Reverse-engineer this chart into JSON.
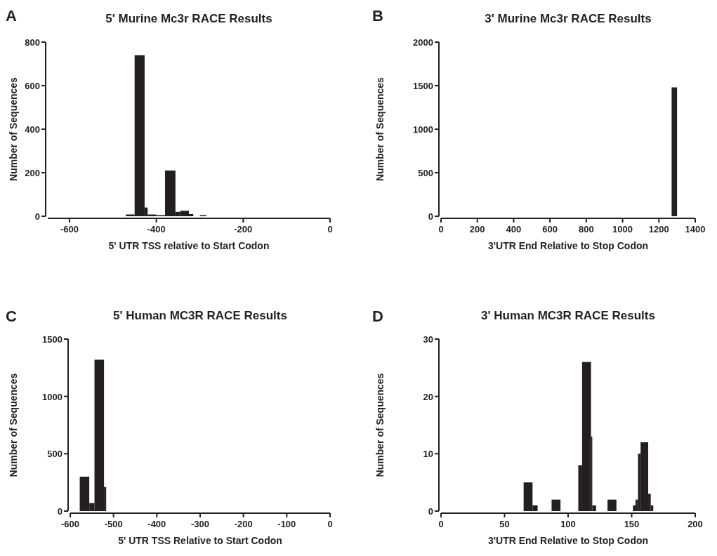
{
  "chart_data": [
    {
      "type": "histogram",
      "title": "5' Murine  Mc3r RACE Results",
      "xlabel": "5' UTR TSS relative to Start Codon",
      "ylabel": "Number of Sequences",
      "annotations": [
        "A"
      ],
      "color": "#231f20",
      "bins": [
        -470,
        -450,
        -427,
        -420,
        -400,
        -380,
        -356,
        -345,
        -325,
        -315,
        -300,
        -285
      ],
      "values": [
        8,
        740,
        40,
        8,
        5,
        210,
        20,
        25,
        10,
        0,
        5
      ],
      "xlim": [
        -650,
        0
      ],
      "xticks": [
        -600,
        -400,
        -200,
        0
      ],
      "ylim": [
        0,
        800
      ],
      "yticks": [
        0,
        200,
        400,
        600,
        800
      ],
      "grid": false
    },
    {
      "type": "histogram",
      "title": "3' Murine Mc3r RACE Results",
      "xlabel": "3'UTR End Relative to Stop Codon",
      "ylabel": "Number of Sequences",
      "annotations": [
        "B"
      ],
      "color": "#231f20",
      "bins": [
        1270,
        1300
      ],
      "values": [
        1480
      ],
      "xlim": [
        0,
        1400
      ],
      "xticks": [
        0,
        200,
        400,
        600,
        800,
        1000,
        1200,
        1400
      ],
      "ylim": [
        0,
        2000
      ],
      "yticks": [
        0,
        500,
        1000,
        1500,
        2000
      ],
      "grid": false
    },
    {
      "type": "histogram",
      "title": "5' Human MC3R RACE  Results",
      "xlabel": "5' UTR TSS Relative to Start Codon",
      "ylabel": "Number of Sequences",
      "annotations": [
        "C"
      ],
      "color": "#231f20",
      "bins": [
        -578,
        -556,
        -544,
        -522,
        -517
      ],
      "values": [
        300,
        70,
        1320,
        210
      ],
      "xlim": [
        -600,
        0
      ],
      "xticks": [
        -600,
        -500,
        -400,
        -300,
        -200,
        -100,
        0
      ],
      "ylim": [
        0,
        1500
      ],
      "yticks": [
        0,
        500,
        1000,
        1500
      ],
      "grid": false
    },
    {
      "type": "histogram",
      "title": "3' Human MC3R RACE Results",
      "xlabel": "3'UTR End Relative to Stop Codon",
      "ylabel": "Number of Sequences",
      "annotations": [
        "D"
      ],
      "color": "#231f20",
      "bins": [
        65,
        72,
        76,
        87,
        94,
        108,
        111,
        118,
        119,
        122,
        131,
        138,
        151,
        153,
        155,
        157,
        163,
        165,
        167
      ],
      "values": [
        5,
        1,
        0,
        2,
        0,
        8,
        26,
        13,
        1,
        0,
        2,
        0,
        1,
        2,
        10,
        12,
        3,
        1
      ],
      "xlim": [
        0,
        200
      ],
      "xticks": [
        0,
        50,
        100,
        150,
        200
      ],
      "ylim": [
        0,
        30
      ],
      "yticks": [
        0,
        10,
        20,
        30
      ],
      "grid": false
    }
  ]
}
